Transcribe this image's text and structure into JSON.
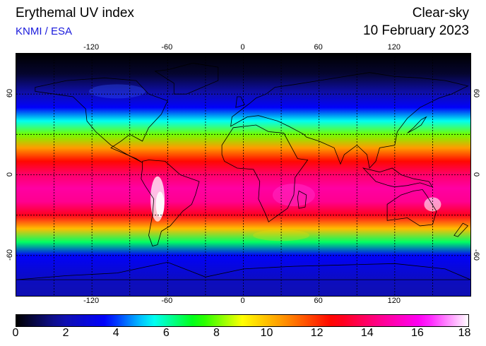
{
  "header": {
    "title": "Erythemal UV index",
    "source": "KNMI / ESA",
    "product": "Clear-sky",
    "date": "10 February 2023"
  },
  "map": {
    "projection": "equirectangular",
    "lon_range": [
      -180,
      180
    ],
    "lat_range": [
      -90,
      90
    ],
    "lon_ticks": [
      "-120",
      "-60",
      "0",
      "60",
      "120"
    ],
    "lat_ticks": [
      "60",
      "0",
      "-60"
    ],
    "lon_tick_values": [
      -120,
      -60,
      0,
      60,
      120
    ],
    "lat_tick_values": [
      60,
      0,
      -60
    ],
    "grid_lon_step": 30,
    "grid_lat_step": 30,
    "grid": "on",
    "coastlines": "on"
  },
  "colorbar": {
    "min": 0,
    "max": 18,
    "ticks": [
      "0",
      "2",
      "4",
      "6",
      "8",
      "10",
      "12",
      "14",
      "16",
      "18"
    ],
    "tick_values": [
      0,
      2,
      4,
      6,
      8,
      10,
      12,
      14,
      16,
      18
    ],
    "colors": [
      "#000000",
      "#1111aa",
      "#0000ff",
      "#00ffff",
      "#00ff00",
      "#ffff00",
      "#ff8800",
      "#ff0000",
      "#ff0088",
      "#ff00ff",
      "#ffffff"
    ]
  },
  "uv_profile": {
    "latitudes": [
      90,
      75,
      60,
      50,
      40,
      30,
      20,
      10,
      0,
      -10,
      -20,
      -30,
      -40,
      -50,
      -60,
      -70,
      -80,
      -90
    ],
    "uv_index": [
      0,
      0.5,
      2,
      3.5,
      5.5,
      8,
      10.5,
      12.5,
      14,
      14.8,
      14.5,
      13,
      10,
      6.5,
      3.5,
      2.8,
      2.2,
      2
    ]
  }
}
